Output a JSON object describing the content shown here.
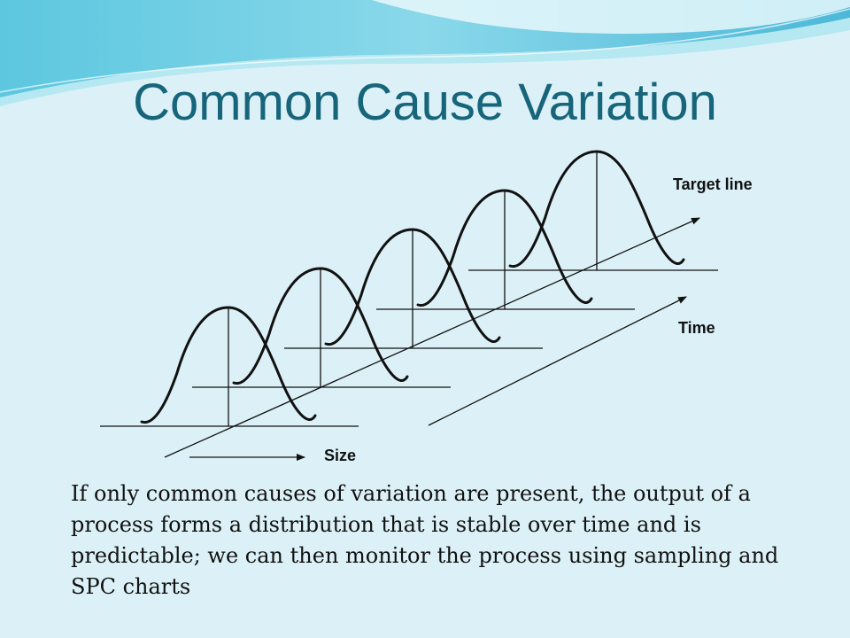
{
  "slide": {
    "title": "Common Cause Variation",
    "body": "If only common causes of variation are present, the output of a process forms a distribution that is stable over time and is predictable; we can then monitor the process using sampling and SPC charts"
  },
  "diagram": {
    "labels": {
      "target_line": "Target line",
      "time": "Time",
      "size": "Size"
    },
    "distribution_count": 5
  },
  "colors": {
    "background": "#dcf1f7",
    "title": "#17657a",
    "banner_dark": "#3db8d6",
    "banner_light": "#a6e4f0",
    "ink": "#111111"
  }
}
